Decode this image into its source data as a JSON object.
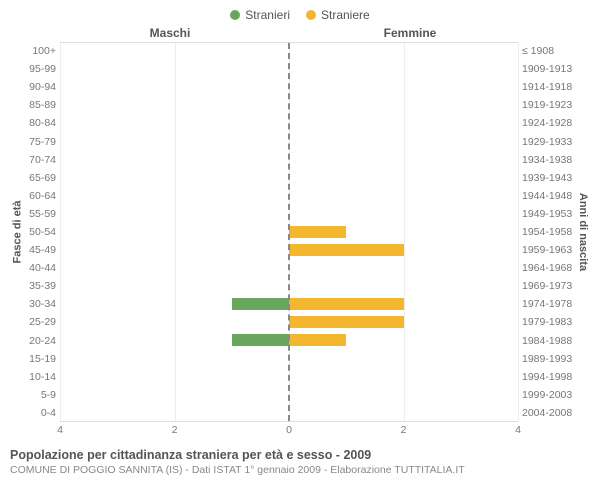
{
  "legend": {
    "male": {
      "label": "Stranieri",
      "color": "#6aa55c"
    },
    "female": {
      "label": "Straniere",
      "color": "#f2b72e"
    }
  },
  "headers": {
    "left": "Maschi",
    "right": "Femmine"
  },
  "ylabels": {
    "left": "Fasce di età",
    "right": "Anni di nascita"
  },
  "axis": {
    "max": 4,
    "ticks_left": [
      4,
      2,
      0
    ],
    "ticks_right": [
      0,
      2,
      4
    ]
  },
  "age_bands": [
    "100+",
    "95-99",
    "90-94",
    "85-89",
    "80-84",
    "75-79",
    "70-74",
    "65-69",
    "60-64",
    "55-59",
    "50-54",
    "45-49",
    "40-44",
    "35-39",
    "30-34",
    "25-29",
    "20-24",
    "15-19",
    "10-14",
    "5-9",
    "0-4"
  ],
  "birth_years": [
    "≤ 1908",
    "1909-1913",
    "1914-1918",
    "1919-1923",
    "1924-1928",
    "1929-1933",
    "1934-1938",
    "1939-1943",
    "1944-1948",
    "1949-1953",
    "1954-1958",
    "1959-1963",
    "1964-1968",
    "1969-1973",
    "1974-1978",
    "1979-1983",
    "1984-1988",
    "1989-1993",
    "1994-1998",
    "1999-2003",
    "2004-2008"
  ],
  "male_values": [
    0,
    0,
    0,
    0,
    0,
    0,
    0,
    0,
    0,
    0,
    0,
    0,
    0,
    0,
    1,
    0,
    1,
    0,
    0,
    0,
    0
  ],
  "female_values": [
    0,
    0,
    0,
    0,
    0,
    0,
    0,
    0,
    0,
    0,
    1,
    2,
    0,
    0,
    2,
    2,
    1,
    0,
    0,
    0,
    0
  ],
  "colors": {
    "grid": "#eee",
    "centerline": "#888",
    "background": "#ffffff",
    "tick_text": "#777"
  },
  "footer": {
    "title": "Popolazione per cittadinanza straniera per età e sesso - 2009",
    "subtitle": "COMUNE DI POGGIO SANNITA (IS) - Dati ISTAT 1° gennaio 2009 - Elaborazione TUTTITALIA.IT"
  }
}
